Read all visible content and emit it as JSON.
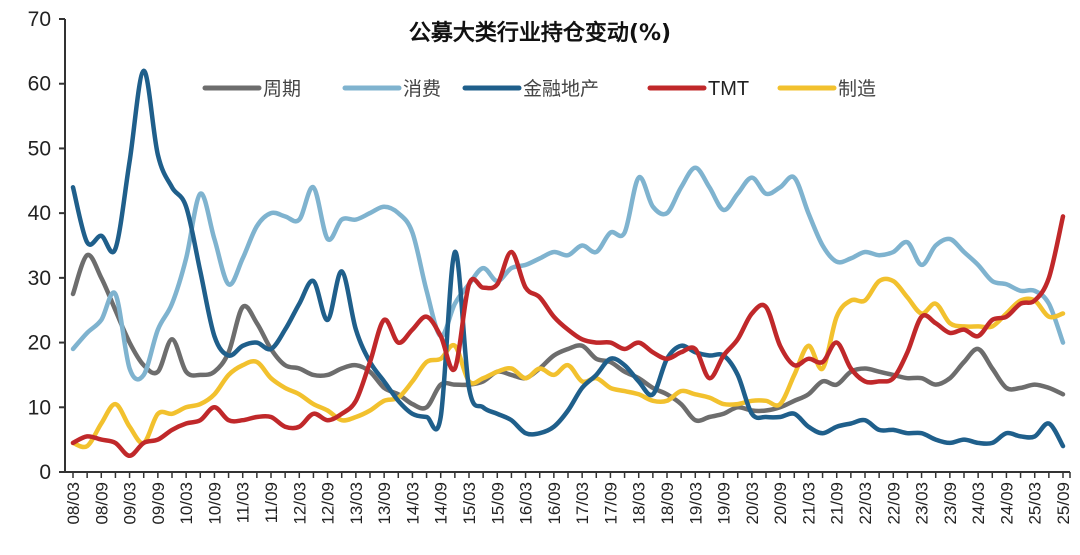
{
  "chart_data": {
    "type": "line",
    "title": "公募大类行业持仓变动(%)",
    "xlabel": "",
    "ylabel": "",
    "ylim": [
      0,
      70
    ],
    "yticks": [
      0,
      10,
      20,
      30,
      40,
      50,
      60,
      70
    ],
    "grid": false,
    "legend_position": "top-center",
    "x_tick_labels": [
      "08/03",
      "08/09",
      "09/03",
      "09/09",
      "10/03",
      "10/09",
      "11/03",
      "11/09",
      "12/03",
      "12/09",
      "13/03",
      "13/09",
      "14/03",
      "14/09",
      "15/03",
      "15/09",
      "16/03",
      "16/09",
      "17/03",
      "17/09",
      "18/03",
      "18/09",
      "19/03",
      "19/09",
      "20/03",
      "20/09",
      "21/03",
      "21/09",
      "22/03",
      "22/09",
      "23/03",
      "23/09",
      "24/03",
      "24/09",
      "25/03",
      "25/09"
    ],
    "x": [
      "08/03",
      "08/06",
      "08/09",
      "08/12",
      "09/03",
      "09/06",
      "09/09",
      "09/12",
      "10/03",
      "10/06",
      "10/09",
      "10/12",
      "11/03",
      "11/06",
      "11/09",
      "11/12",
      "12/03",
      "12/06",
      "12/09",
      "12/12",
      "13/03",
      "13/06",
      "13/09",
      "13/12",
      "14/03",
      "14/06",
      "14/09",
      "14/12",
      "15/03",
      "15/06",
      "15/09",
      "15/12",
      "16/03",
      "16/06",
      "16/09",
      "16/12",
      "17/03",
      "17/06",
      "17/09",
      "17/12",
      "18/03",
      "18/06",
      "18/09",
      "18/12",
      "19/03",
      "19/06",
      "19/09",
      "19/12",
      "20/03",
      "20/06",
      "20/09",
      "20/12",
      "21/03",
      "21/06",
      "21/09",
      "21/12",
      "22/03",
      "22/06",
      "22/09",
      "22/12",
      "23/03",
      "23/06",
      "23/09",
      "23/12",
      "24/03",
      "24/06",
      "24/09",
      "24/12",
      "25/03",
      "25/06",
      "25/09"
    ],
    "series": [
      {
        "name": "周期",
        "color": "#6d6d6d",
        "values": [
          27.5,
          33.5,
          30,
          25,
          20,
          16.5,
          15.5,
          20.5,
          15.5,
          15,
          15.5,
          18.5,
          25.5,
          23,
          19,
          16.5,
          16,
          15,
          15,
          16,
          16.5,
          15.5,
          13,
          12,
          10.5,
          10,
          13.5,
          13.5,
          13.5,
          14,
          15.5,
          15,
          14.5,
          16,
          18,
          19,
          19.5,
          17.5,
          17,
          15.5,
          14.5,
          13,
          12,
          10.5,
          8,
          8.5,
          9,
          10,
          9.5,
          9.5,
          10,
          11,
          12,
          14,
          13.5,
          15.5,
          16,
          15.5,
          15,
          14.5,
          14.5,
          13.5,
          14.5,
          17,
          19,
          16,
          13,
          13,
          13.5,
          13,
          12
        ]
      },
      {
        "name": "消费",
        "color": "#7fb3cf",
        "values": [
          19,
          21.5,
          23.5,
          27.5,
          16,
          15,
          22,
          26,
          33,
          43,
          36,
          29,
          33,
          38,
          40,
          39.5,
          39,
          44,
          36,
          39,
          39,
          40,
          41,
          40,
          37,
          28,
          21,
          26,
          29,
          31.5,
          29.5,
          31.5,
          32,
          33,
          34,
          33.5,
          35,
          34,
          37,
          37,
          45.5,
          41,
          40,
          44,
          47,
          44,
          40.5,
          43,
          45.5,
          43,
          44,
          45.5,
          40,
          35,
          32.5,
          33,
          34,
          33.5,
          34,
          35.5,
          32,
          35,
          36,
          34,
          32,
          29.5,
          29,
          28,
          28,
          26,
          20
        ]
      },
      {
        "name": "金融地产",
        "color": "#1f5f8b",
        "values": [
          44,
          35.5,
          36.5,
          34.5,
          48,
          62,
          49,
          44,
          41,
          31,
          21,
          18,
          19.5,
          20,
          19,
          22,
          26,
          29.5,
          23.5,
          31,
          22,
          17,
          14,
          11,
          9,
          8.5,
          8.5,
          34,
          13,
          10,
          9,
          8,
          6,
          6,
          7,
          9.5,
          13,
          15,
          17.5,
          16.5,
          14,
          12,
          17.5,
          19.5,
          18.5,
          18,
          18,
          15,
          9,
          8.5,
          8.5,
          9,
          7,
          6,
          7,
          7.5,
          8,
          6.5,
          6.5,
          6,
          6,
          5,
          4.5,
          5,
          4.5,
          4.5,
          6,
          5.5,
          5.5,
          7.5,
          4
        ]
      },
      {
        "name": "TMT",
        "color": "#c0282a",
        "values": [
          4.5,
          5.5,
          5,
          4.5,
          2.5,
          4.5,
          5,
          6.5,
          7.5,
          8,
          10,
          8,
          8,
          8.5,
          8.5,
          7,
          7,
          9,
          8,
          9,
          11,
          17,
          23.5,
          20,
          22,
          24,
          21,
          16,
          29,
          28.5,
          29,
          34,
          28.5,
          27,
          24,
          22,
          20.5,
          20,
          20,
          19,
          20,
          18.5,
          17.5,
          18.5,
          19,
          14.5,
          18,
          20.5,
          24.5,
          25.5,
          19.5,
          16.5,
          17.5,
          17,
          20,
          16,
          14,
          14,
          14.5,
          18.5,
          24,
          23,
          21.5,
          22,
          21,
          23.5,
          24,
          26,
          26.5,
          30,
          39.5
        ]
      },
      {
        "name": "制造",
        "color": "#f2c12e",
        "values": [
          4.5,
          4,
          7.5,
          10.5,
          7,
          4.5,
          9,
          9,
          10,
          10.5,
          12,
          15,
          16.5,
          17,
          14.5,
          13,
          12,
          10.5,
          9.5,
          8,
          8.5,
          9.5,
          11,
          11.5,
          14,
          17,
          17.5,
          19.5,
          14,
          14.5,
          15.5,
          16,
          14.5,
          16,
          15,
          16.5,
          14,
          14.5,
          13,
          12.5,
          12,
          11,
          11,
          12.5,
          12,
          11.5,
          10.5,
          10.5,
          11,
          11,
          10.5,
          15,
          19.5,
          16,
          24,
          26.5,
          26.5,
          29.5,
          29.5,
          27,
          24.5,
          26,
          23,
          22.5,
          22.5,
          22.5,
          24.5,
          26.5,
          26.5,
          24,
          24.5
        ]
      }
    ]
  }
}
